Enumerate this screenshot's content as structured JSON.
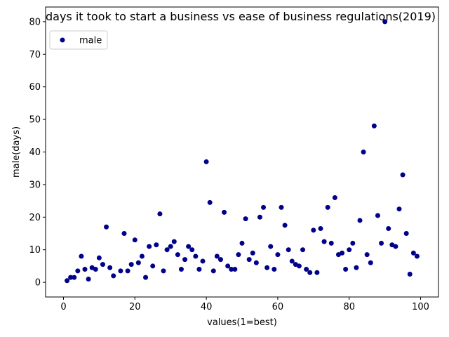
{
  "chart_data": {
    "type": "scatter",
    "title": "days it took to start a business vs ease of business regulations(2019)",
    "xlabel": "values(1=best)",
    "ylabel": "male(days)",
    "xlim": [
      -5,
      105
    ],
    "ylim": [
      -4.5,
      84.5
    ],
    "xticks": [
      0,
      20,
      40,
      60,
      80,
      100
    ],
    "yticks": [
      0,
      10,
      20,
      30,
      40,
      50,
      60,
      70,
      80
    ],
    "grid": false,
    "legend_position": "top-left",
    "marker_color": "#00008b",
    "series": [
      {
        "name": "male",
        "x": [
          1,
          2,
          3,
          4,
          5,
          6,
          7,
          8,
          9,
          10,
          11,
          12,
          13,
          14,
          16,
          17,
          18,
          19,
          20,
          21,
          22,
          23,
          24,
          25,
          26,
          27,
          28,
          29,
          30,
          31,
          32,
          33,
          34,
          35,
          36,
          37,
          38,
          39,
          40,
          41,
          42,
          43,
          44,
          45,
          46,
          47,
          48,
          49,
          50,
          51,
          52,
          53,
          54,
          55,
          56,
          57,
          58,
          59,
          60,
          61,
          62,
          63,
          64,
          65,
          66,
          67,
          68,
          69,
          70,
          71,
          72,
          73,
          74,
          75,
          76,
          77,
          78,
          79,
          80,
          81,
          82,
          83,
          84,
          85,
          86,
          87,
          88,
          89,
          90,
          91,
          92,
          93,
          94,
          95,
          96,
          97,
          98,
          99
        ],
        "y": [
          0.5,
          1.5,
          1.5,
          3.5,
          8,
          4,
          1,
          4.5,
          4,
          7.5,
          5.5,
          17,
          4.5,
          2,
          3.5,
          15,
          3.5,
          5.5,
          13,
          6,
          8,
          1.5,
          11,
          5,
          11.5,
          21,
          3.5,
          10,
          11,
          12.5,
          8.5,
          4,
          7,
          11,
          10,
          8,
          4,
          6.5,
          37,
          24.5,
          3.5,
          8,
          7,
          21.5,
          5,
          4,
          4,
          8.5,
          12,
          19.5,
          7,
          9,
          6,
          20,
          23,
          4.5,
          11,
          4,
          8.5,
          23,
          17.5,
          10,
          6.5,
          5.5,
          5,
          10,
          4,
          3,
          16,
          3,
          16.5,
          12.5,
          23,
          12,
          26,
          8.5,
          9,
          4,
          10,
          12,
          4.5,
          19,
          40,
          8.5,
          6,
          48,
          20.5,
          12,
          80,
          16.5,
          11.5,
          11,
          22.5,
          33,
          15,
          2.5,
          9,
          8
        ]
      }
    ]
  }
}
